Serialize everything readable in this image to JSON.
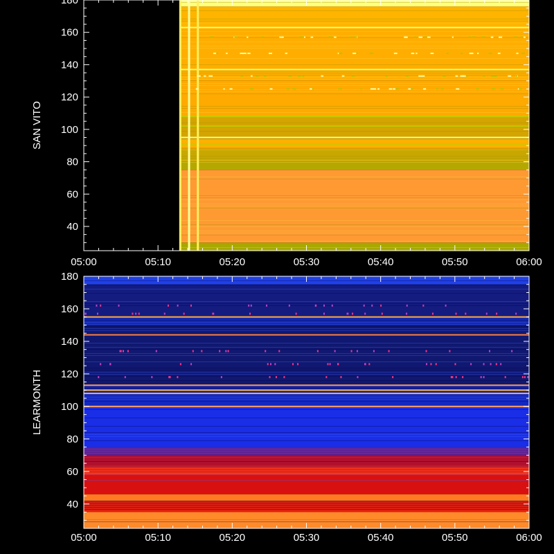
{
  "chart_data": [
    {
      "type": "heatmap",
      "ylabel": "SAN VITO",
      "x_tick_labels": [
        "05:00",
        "05:10",
        "05:20",
        "05:30",
        "05:40",
        "05:50",
        "06:00"
      ],
      "y_tick_labels": [
        "40",
        "60",
        "80",
        "100",
        "120",
        "140",
        "160",
        "180"
      ],
      "y_ticks": [
        40,
        60,
        80,
        100,
        120,
        140,
        160,
        180
      ],
      "xlim": [
        "05:00",
        "06:00"
      ],
      "ylim": [
        25,
        180
      ],
      "colormap": "yellow-orange-red",
      "no_data_until": "05:13",
      "bands": [
        {
          "from": 25,
          "to": 30,
          "color": "#a8a800"
        },
        {
          "from": 30,
          "to": 75,
          "color": "#ff9a33"
        },
        {
          "from": 75,
          "to": 80,
          "color": "#b4a800"
        },
        {
          "from": 80,
          "to": 88,
          "color": "#c8a800"
        },
        {
          "from": 88,
          "to": 94,
          "color": "#ffb000"
        },
        {
          "from": 94,
          "to": 108,
          "color": "#d4a400"
        },
        {
          "from": 108,
          "to": 130,
          "color": "#ffaa00"
        },
        {
          "from": 130,
          "to": 163,
          "color": "#ffae00"
        },
        {
          "from": 163,
          "to": 176,
          "color": "#ffb400"
        },
        {
          "from": 176,
          "to": 180,
          "color": "#ffff80"
        }
      ],
      "lines": [
        {
          "y": 163,
          "color": "#ffff66"
        },
        {
          "y": 137,
          "color": "#ffff66"
        },
        {
          "y": 108,
          "color": "#c8c800"
        },
        {
          "y": 102,
          "color": "#c8c800"
        },
        {
          "y": 95,
          "color": "#ffff80"
        },
        {
          "y": 91,
          "color": "#c8c800"
        }
      ],
      "vertical_streaks": [
        "05:13",
        "05:14",
        "05:15"
      ]
    },
    {
      "type": "heatmap",
      "ylabel": "LEARMONTH",
      "x_tick_labels": [
        "05:00",
        "05:10",
        "05:20",
        "05:30",
        "05:40",
        "05:50",
        "06:00"
      ],
      "y_tick_labels": [
        "40",
        "60",
        "80",
        "100",
        "120",
        "140",
        "160",
        "180"
      ],
      "y_ticks": [
        40,
        60,
        80,
        100,
        120,
        140,
        160,
        180
      ],
      "xlim": [
        "05:00",
        "06:00"
      ],
      "ylim": [
        25,
        180
      ],
      "colormap": "blue-red-yellow",
      "bands": [
        {
          "from": 25,
          "to": 35,
          "color": "#ff8a2a"
        },
        {
          "from": 35,
          "to": 42,
          "color": "#e02010"
        },
        {
          "from": 42,
          "to": 46,
          "color": "#ff7a20"
        },
        {
          "from": 46,
          "to": 58,
          "color": "#d81010"
        },
        {
          "from": 58,
          "to": 63,
          "color": "#ff3318"
        },
        {
          "from": 63,
          "to": 70,
          "color": "#b01030"
        },
        {
          "from": 70,
          "to": 75,
          "color": "#602090"
        },
        {
          "from": 75,
          "to": 100,
          "color": "#1a2ee8"
        },
        {
          "from": 100,
          "to": 108,
          "color": "#1428c0"
        },
        {
          "from": 108,
          "to": 113,
          "color": "#1020a0"
        },
        {
          "from": 113,
          "to": 150,
          "color": "#101870"
        },
        {
          "from": 150,
          "to": 155,
          "color": "#1428b0"
        },
        {
          "from": 155,
          "to": 175,
          "color": "#141c80"
        },
        {
          "from": 175,
          "to": 180,
          "color": "#2040e8"
        }
      ],
      "lines": [
        {
          "y": 155,
          "color": "#ffaa40"
        },
        {
          "y": 144,
          "color": "#ff8040"
        },
        {
          "y": 113,
          "color": "#ff9a50"
        },
        {
          "y": 110,
          "color": "#ffc060"
        },
        {
          "y": 108,
          "color": "#ffb050"
        },
        {
          "y": 100,
          "color": "#ffa060"
        }
      ],
      "spot_rows": [
        162,
        157,
        134,
        126,
        118
      ]
    }
  ]
}
